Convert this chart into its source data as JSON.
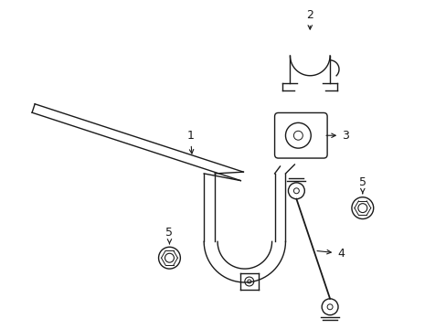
{
  "bg_color": "#ffffff",
  "line_color": "#1a1a1a",
  "figsize": [
    4.89,
    3.6
  ],
  "dpi": 100,
  "label_font_size": 9,
  "line_width": 1.0,
  "bar_lw": 1.2
}
